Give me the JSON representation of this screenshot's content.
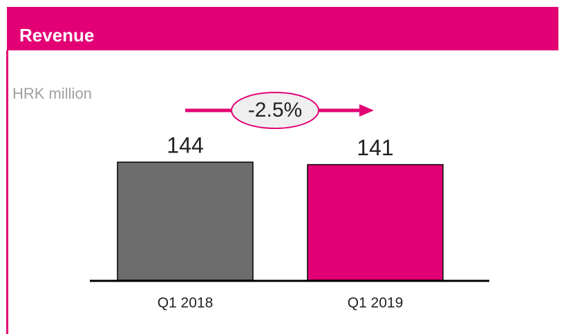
{
  "chart_data": {
    "type": "bar",
    "title": "Revenue",
    "subtitle": "HRK million",
    "annotation": "-2.5%",
    "categories": [
      "Q1 2018",
      "Q1 2019"
    ],
    "values": [
      144,
      141
    ],
    "colors": [
      "#6d6d6d",
      "#e20074"
    ]
  }
}
